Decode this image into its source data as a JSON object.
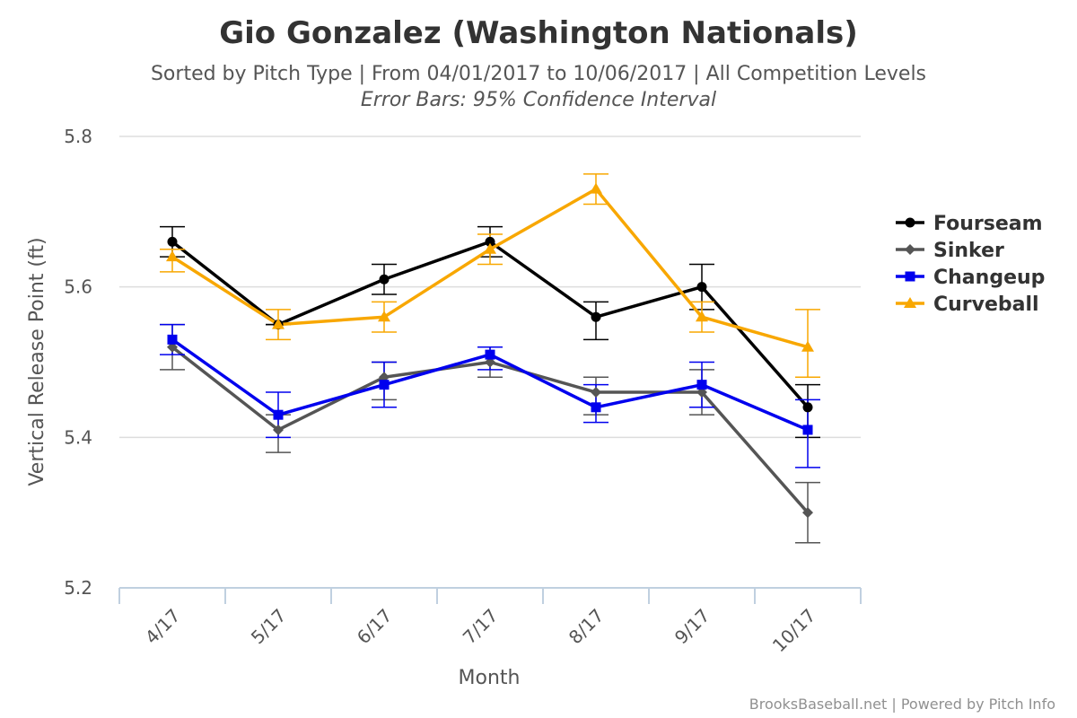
{
  "chart_data": {
    "type": "line",
    "title": "Gio Gonzalez (Washington Nationals)",
    "subtitle": "Sorted by Pitch Type | From 04/01/2017 to 10/06/2017 | All Competition Levels",
    "subtitle2": "Error Bars: 95% Confidence Interval",
    "xlabel": "Month",
    "ylabel": "Vertical Release Point (ft)",
    "categories": [
      "4/17",
      "5/17",
      "6/17",
      "7/17",
      "8/17",
      "9/17",
      "10/17"
    ],
    "ylim": [
      5.2,
      5.8
    ],
    "yticks": [
      "5.2",
      "5.4",
      "5.6",
      "5.8"
    ],
    "grid": true,
    "legend_position": "right",
    "credits": "BrooksBaseball.net | Powered by Pitch Info",
    "series": [
      {
        "name": "Fourseam",
        "color": "#000000",
        "marker": "circle",
        "values": [
          5.66,
          5.55,
          5.61,
          5.66,
          5.56,
          5.6,
          5.44
        ],
        "error_low": [
          5.64,
          5.55,
          5.59,
          5.64,
          5.53,
          5.57,
          5.4
        ],
        "error_high": [
          5.68,
          5.55,
          5.63,
          5.68,
          5.58,
          5.63,
          5.47
        ]
      },
      {
        "name": "Sinker",
        "color": "#555555",
        "marker": "diamond",
        "values": [
          5.52,
          5.41,
          5.48,
          5.5,
          5.46,
          5.46,
          5.3
        ],
        "error_low": [
          5.49,
          5.38,
          5.45,
          5.48,
          5.43,
          5.43,
          5.26
        ],
        "error_high": [
          5.55,
          5.43,
          5.5,
          5.52,
          5.48,
          5.49,
          5.34
        ]
      },
      {
        "name": "Changeup",
        "color": "#0000ee",
        "marker": "square",
        "values": [
          5.53,
          5.43,
          5.47,
          5.51,
          5.44,
          5.47,
          5.41
        ],
        "error_low": [
          5.51,
          5.4,
          5.44,
          5.49,
          5.42,
          5.44,
          5.36
        ],
        "error_high": [
          5.55,
          5.46,
          5.5,
          5.52,
          5.47,
          5.5,
          5.45
        ]
      },
      {
        "name": "Curveball",
        "color": "#f8a700",
        "marker": "triangle",
        "values": [
          5.64,
          5.55,
          5.56,
          5.65,
          5.73,
          5.56,
          5.52
        ],
        "error_low": [
          5.62,
          5.53,
          5.54,
          5.63,
          5.71,
          5.54,
          5.48
        ],
        "error_high": [
          5.65,
          5.57,
          5.58,
          5.67,
          5.75,
          5.58,
          5.57
        ]
      }
    ]
  }
}
